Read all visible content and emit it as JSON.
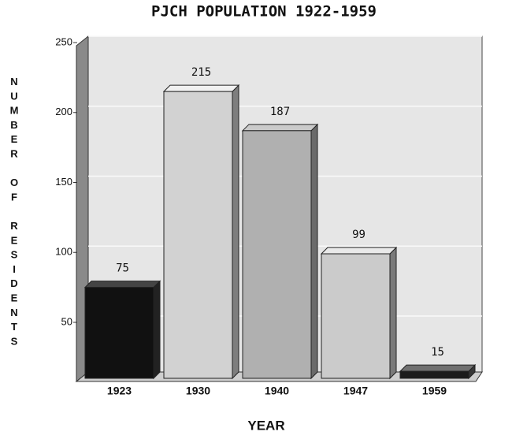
{
  "chart_data": {
    "type": "bar3d",
    "title": "PJCH POPULATION 1922-1959",
    "x_label": "YEAR",
    "y_label": "NUMBER OF RESIDENTS",
    "categories": [
      "1923",
      "1930",
      "1940",
      "1947",
      "1959"
    ],
    "values": [
      75,
      215,
      187,
      99,
      15
    ],
    "colors": [
      "#111111",
      "#d2d2d2",
      "#b0b0b0",
      "#cbcbcb",
      "#1c1c1c"
    ],
    "ylim": [
      10,
      250
    ],
    "yticks": [
      50,
      100,
      150,
      200,
      250
    ],
    "grid": true
  }
}
